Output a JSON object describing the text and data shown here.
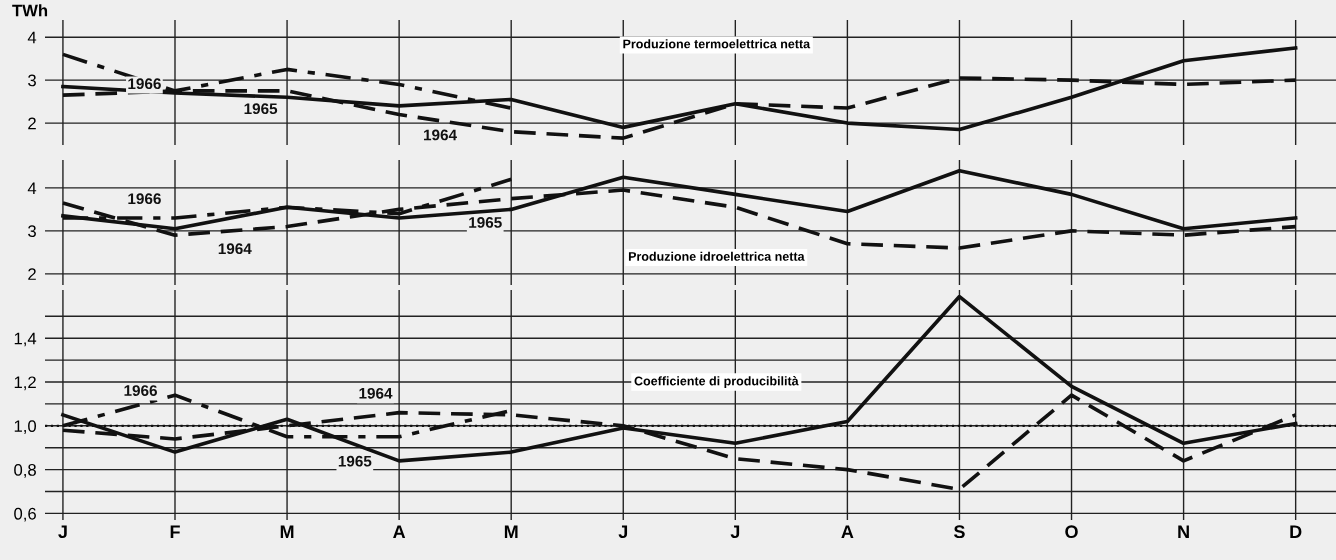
{
  "chart_data": [
    {
      "type": "line",
      "ylabel": "TWh",
      "categories": [
        null,
        null,
        null,
        null,
        null,
        null,
        null,
        null,
        null,
        null,
        null,
        null
      ],
      "ylim": [
        1.49,
        4.4
      ],
      "yticks": [
        2,
        3,
        4
      ],
      "grid": true,
      "legend": false,
      "annotations": [
        "Produzione termoelettrica netta"
      ],
      "series": [
        {
          "name": "1965",
          "color": "#111111",
          "line_style": "solid",
          "values": [
            2.85,
            2.7,
            2.6,
            2.4,
            2.55,
            1.9,
            2.45,
            2.0,
            1.85,
            2.6,
            3.45,
            3.75
          ]
        },
        {
          "name": "1964",
          "color": "#111111",
          "line_style": "dashed",
          "values": [
            2.65,
            2.75,
            2.75,
            2.2,
            1.8,
            1.65,
            2.45,
            2.35,
            3.05,
            3.0,
            2.9,
            3.0
          ]
        },
        {
          "name": "1966",
          "color": "#111111",
          "line_style": "dashdot",
          "values": [
            3.6,
            2.75,
            3.25,
            2.9,
            2.35,
            null,
            null,
            null,
            null,
            null,
            null,
            null
          ]
        }
      ]
    },
    {
      "type": "line",
      "categories": [
        null,
        null,
        null,
        null,
        null,
        null,
        null,
        null,
        null,
        null,
        null,
        null
      ],
      "ylim": [
        1.74,
        4.65
      ],
      "yticks": [
        2,
        3,
        4
      ],
      "grid": true,
      "legend": false,
      "annotations": [
        "Produzione idroelettrica netta"
      ],
      "series": [
        {
          "name": "1965",
          "color": "#111111",
          "line_style": "solid",
          "values": [
            3.35,
            3.05,
            3.55,
            3.3,
            3.5,
            4.25,
            3.85,
            3.45,
            4.4,
            3.85,
            3.05,
            3.3
          ]
        },
        {
          "name": "1964",
          "color": "#111111",
          "line_style": "dashed",
          "values": [
            3.65,
            2.9,
            3.1,
            3.5,
            3.75,
            3.95,
            3.55,
            2.7,
            2.6,
            3.0,
            2.9,
            3.1
          ]
        },
        {
          "name": "1966",
          "color": "#111111",
          "line_style": "dashdot",
          "values": [
            3.3,
            3.3,
            3.55,
            3.4,
            4.2,
            null,
            null,
            null,
            null,
            null,
            null,
            null
          ]
        }
      ]
    },
    {
      "type": "line",
      "categories": [
        "J",
        "F",
        "M",
        "A",
        "M",
        "J",
        "J",
        "A",
        "S",
        "O",
        "N",
        "D"
      ],
      "ylim": [
        0.57,
        1.62
      ],
      "yticks": [
        {
          "value": 0.6,
          "label": "0,6"
        },
        {
          "value": 0.7,
          "label": null
        },
        {
          "value": 0.8,
          "label": "0,8"
        },
        {
          "value": 0.9,
          "label": null
        },
        {
          "value": 1.0,
          "label": "1,0"
        },
        {
          "value": 1.1,
          "label": null
        },
        {
          "value": 1.2,
          "label": "1,2"
        },
        {
          "value": 1.3,
          "label": null
        },
        {
          "value": 1.4,
          "label": "1,4"
        },
        {
          "value": 1.5,
          "label": null
        }
      ],
      "grid": true,
      "legend": false,
      "ref_lines": [
        {
          "axis": "y",
          "value": 1.0,
          "line_style": "dotted",
          "color": "#111111"
        }
      ],
      "annotations": [
        "Coefficiente di producibilità"
      ],
      "series": [
        {
          "name": "1965",
          "color": "#111111",
          "line_style": "solid",
          "values": [
            1.05,
            0.88,
            1.03,
            0.84,
            0.88,
            0.99,
            0.92,
            1.02,
            1.59,
            1.18,
            0.92,
            1.01
          ]
        },
        {
          "name": "1964",
          "color": "#111111",
          "line_style": "dashed",
          "values": [
            0.98,
            0.94,
            1.0,
            1.06,
            1.05,
            1.0,
            0.85,
            0.8,
            0.71,
            1.14,
            0.84,
            1.05
          ]
        },
        {
          "name": "1966",
          "color": "#111111",
          "line_style": "dashdot",
          "values": [
            1.0,
            1.14,
            0.95,
            0.95,
            1.07,
            null,
            null,
            null,
            null,
            null,
            null,
            null
          ]
        }
      ]
    }
  ]
}
